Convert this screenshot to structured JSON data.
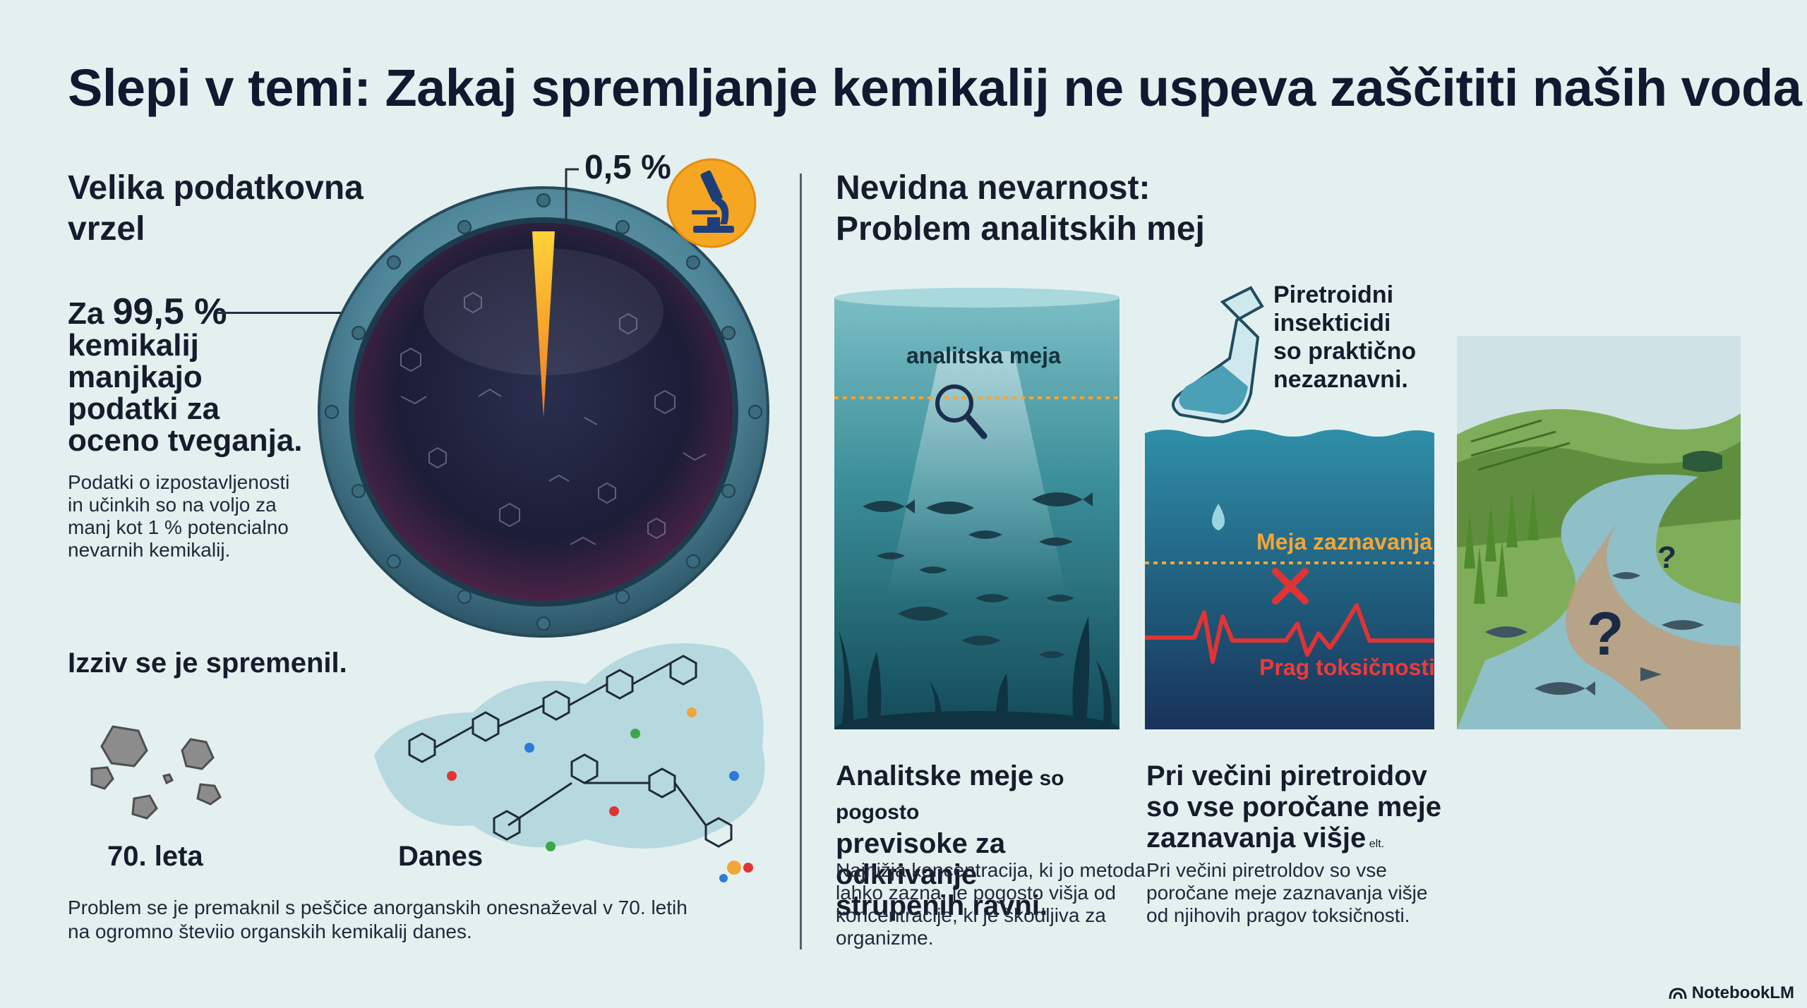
{
  "title": "Slepi v temi: Zakaj spremljanje kemikalij ne uspeva zaščititi naših voda",
  "left": {
    "gap_heading_line1": "Velika podatkovna",
    "gap_heading_line2": "vrzel",
    "gauge_percent": "0,5 %",
    "gauge_fraction": 0.005,
    "stat_prefix": "Za ",
    "stat_big": "99,5 %",
    "stat_line2": "kemikalij",
    "stat_line3": "manjkajo",
    "stat_line4": "podatki za",
    "stat_line5": "oceno tveganja.",
    "detail_line1": "Podatki o izpostavljenosti",
    "detail_line2": "in učinkih so na voljo za",
    "detail_line3": "manj kot 1 % potencialno",
    "detail_line4": "nevarnih kemikalij.",
    "challenge_heading": "Izziv se je spremenil.",
    "era_past": "70. leta",
    "era_now": "Danes",
    "problem_line1": "Problem se je premaknil s peščice anorganskih onesnaževal v 70. letih",
    "problem_line2": "na ogromno števiio organskih kemikalij danes."
  },
  "right": {
    "heading_line1": "Nevidna nevarnost:",
    "heading_line2": "Problem analitskih mej",
    "panel1_label": "analitska meja",
    "pyr_line1": "Piretroidni",
    "pyr_line2": "insekticidi",
    "pyr_line3": "so praktično",
    "pyr_line4": "nezaznavni.",
    "detect_label": "Meja zaznavanja",
    "tox_label": "Prag toksičnosti",
    "q_mark": "?",
    "col1_h_bold": "Analitske meje",
    "col1_h_norm": " so pogosto",
    "col1_h_line2": "previsoke za odkrivanje",
    "col1_h_line3": "strupenih ravni.",
    "col1_s_line1": "Najnižja koncentracija, ki jo metoda",
    "col1_s_line2": "lahko zazna, je pogosto višja od",
    "col1_s_line3": "koncentracije, ki je škodljiva za",
    "col1_s_line4": "organizme.",
    "col2_h_line1": "Pri večini piretroidov",
    "col2_h_line2": "so vse poročane meje",
    "col2_h_line3": "zaznavanja višje",
    "col2_h_tiny": " elt.",
    "col2_s_line1": "Pri večini piretroldov so vse",
    "col2_s_line2": "poročane meje zaznavanja višje",
    "col2_s_line3": "od njihovih pragov toksičnosti."
  },
  "brand": "NotebookLM",
  "icons": {
    "microscope": "microscope-icon",
    "magnifier": "magnifier-icon",
    "flask": "flask-icon",
    "cross": "cross-icon",
    "brand": "notebooklm-logo-icon"
  },
  "colors": {
    "accent_orange": "#f7a21b",
    "water_teal": "#2c7b88",
    "danger_red": "#e03434",
    "detect_orange": "#f2a638"
  }
}
